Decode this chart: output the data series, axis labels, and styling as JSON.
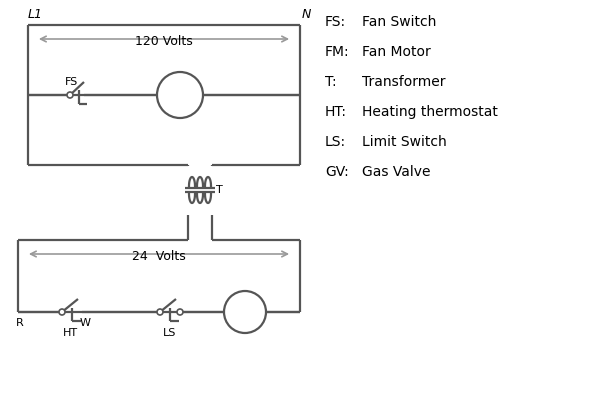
{
  "bg_color": "#ffffff",
  "line_color": "#555555",
  "text_color": "#000000",
  "lw": 1.6,
  "legend_items": [
    [
      "FS:",
      "Fan Switch"
    ],
    [
      "FM:",
      "Fan Motor"
    ],
    [
      "T:",
      "Transformer"
    ],
    [
      "HT:",
      "Heating thermostat"
    ],
    [
      "LS:",
      "Limit Switch"
    ],
    [
      "GV:",
      "Gas Valve"
    ]
  ]
}
